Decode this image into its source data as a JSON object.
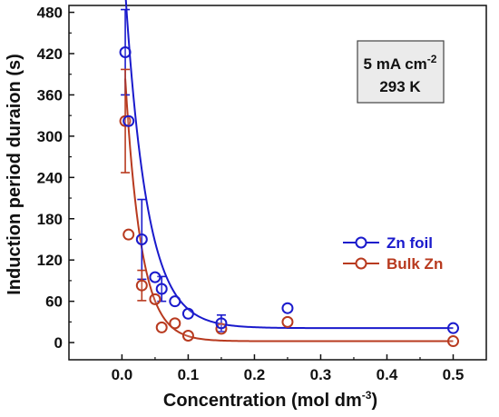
{
  "chart_data": {
    "type": "scatter",
    "xlabel": "Concentration (mol dm",
    "xlabel_sup": "-3",
    "xlabel_end": ")",
    "ylabel": "Induction period duraion (s)",
    "xlim": [
      -0.08,
      0.55
    ],
    "ylim": [
      -25,
      490
    ],
    "x_ticks": [
      0.0,
      0.1,
      0.2,
      0.3,
      0.4,
      0.5
    ],
    "x_tick_labels": [
      "0.0",
      "0.1",
      "0.2",
      "0.3",
      "0.4",
      "0.5"
    ],
    "y_ticks": [
      0,
      60,
      120,
      180,
      240,
      300,
      360,
      420,
      480
    ],
    "y_tick_labels": [
      "0",
      "60",
      "120",
      "180",
      "240",
      "300",
      "360",
      "420",
      "480"
    ],
    "grid": false,
    "legend_position": "right-middle",
    "annotation": {
      "line1": "5 mA cm",
      "line1_sup": "-2",
      "line2": "293 K"
    },
    "series": [
      {
        "name": "Zn foil",
        "color": "#1a1acc",
        "marker": "open-circle",
        "x": [
          0.005,
          0.01,
          0.03,
          0.05,
          0.06,
          0.08,
          0.1,
          0.15,
          0.25,
          0.5
        ],
        "y": [
          422,
          322,
          150,
          95,
          78,
          60,
          42,
          28,
          50,
          21
        ],
        "yerr": [
          62,
          0,
          58,
          0,
          18,
          0,
          0,
          12,
          0,
          0
        ],
        "fit": {
          "model": "exp_decay",
          "y0": 21,
          "A": 570,
          "t": 0.033
        }
      },
      {
        "name": "Bulk Zn",
        "color": "#b83a1f",
        "marker": "open-circle",
        "x": [
          0.005,
          0.01,
          0.03,
          0.05,
          0.06,
          0.08,
          0.1,
          0.15,
          0.25,
          0.5
        ],
        "y": [
          322,
          157,
          83,
          63,
          22,
          28,
          10,
          20,
          30,
          2
        ],
        "yerr": [
          75,
          0,
          22,
          0,
          0,
          0,
          0,
          0,
          0,
          0
        ],
        "fit": {
          "model": "exp_decay",
          "y0": 2,
          "A": 470,
          "t": 0.024
        }
      }
    ]
  }
}
